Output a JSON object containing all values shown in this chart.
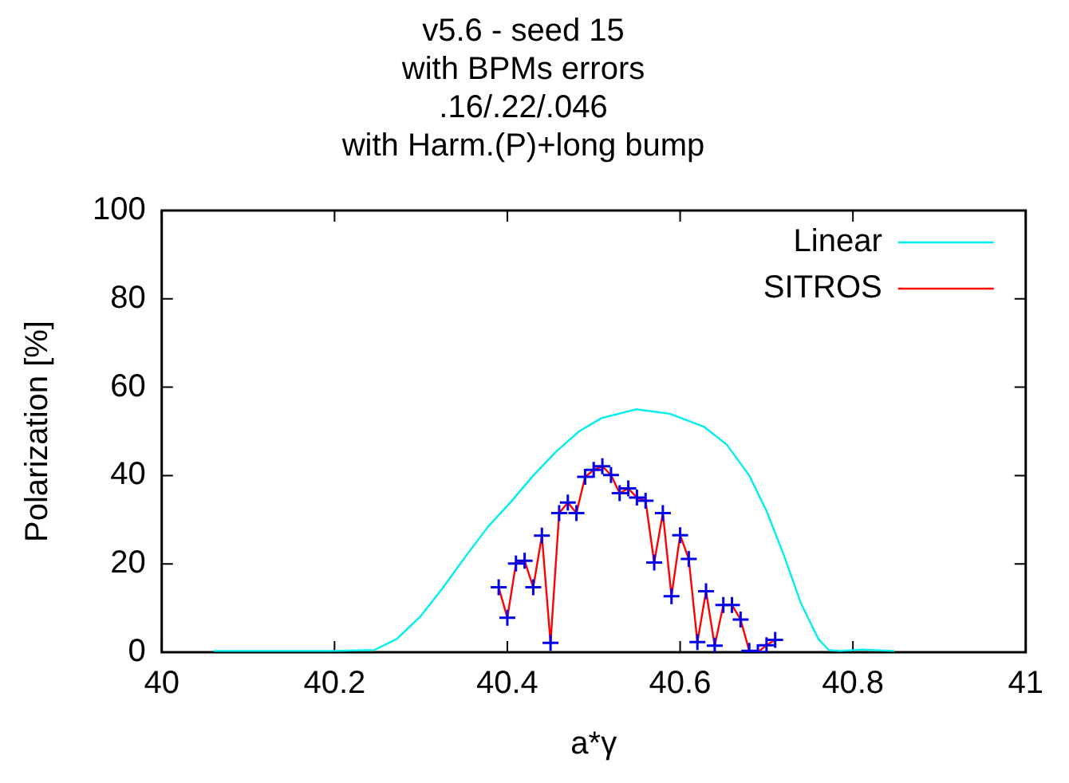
{
  "chart_data": {
    "type": "line",
    "title": "v5.6 - seed 15\nwith BPMs errors\n.16/.22/.046\nwith Harm.(P)+long bump",
    "xlabel": "a*γ",
    "ylabel": "Polarization [%]",
    "series": [
      {
        "name": "Linear",
        "color": "#00eeee",
        "marker": "none",
        "x": [
          40.06,
          40.2,
          40.246,
          40.272,
          40.299,
          40.325,
          40.351,
          40.378,
          40.404,
          40.43,
          40.457,
          40.483,
          40.509,
          40.549,
          40.588,
          40.628,
          40.654,
          40.68,
          40.7,
          40.72,
          40.74,
          40.76,
          40.772,
          40.785,
          40.81,
          40.848
        ],
        "values": [
          0.3,
          0.3,
          0.5,
          3,
          8,
          14.5,
          21.5,
          28.5,
          34,
          40,
          45.5,
          50,
          53,
          55,
          54,
          51,
          47,
          40,
          32,
          22,
          11,
          3,
          0.5,
          0.3,
          0.6,
          0.3
        ]
      },
      {
        "name": "SITROS",
        "color": "#ff0000",
        "marker": "cross",
        "x": [
          40.39,
          40.4,
          40.41,
          40.42,
          40.43,
          40.44,
          40.45,
          40.46,
          40.47,
          40.48,
          40.49,
          40.5,
          40.51,
          40.52,
          40.53,
          40.54,
          40.55,
          40.56,
          40.57,
          40.58,
          40.59,
          40.6,
          40.61,
          40.62,
          40.63,
          40.64,
          40.65,
          40.66,
          40.67,
          40.68,
          40.69,
          40.7,
          40.71
        ],
        "values": [
          14.7,
          7.8,
          20.1,
          20.7,
          14.7,
          26.4,
          2.1,
          31.5,
          33.9,
          31.5,
          39.7,
          41.3,
          42.1,
          40.1,
          36,
          37.1,
          35,
          34.3,
          20.3,
          31.5,
          12.7,
          26.5,
          21.1,
          2.3,
          13.8,
          1.5,
          10.7,
          10.7,
          7.4,
          0.3,
          0,
          1.6,
          2.8
        ]
      }
    ],
    "xlim": [
      40,
      41
    ],
    "xticks": [
      40,
      40.2,
      40.4,
      40.6,
      40.8,
      41
    ],
    "ylim": [
      0,
      100
    ],
    "yticks": [
      0,
      20,
      40,
      60,
      80,
      100
    ],
    "grid": false,
    "legend": "top right",
    "line_style": "solid"
  }
}
